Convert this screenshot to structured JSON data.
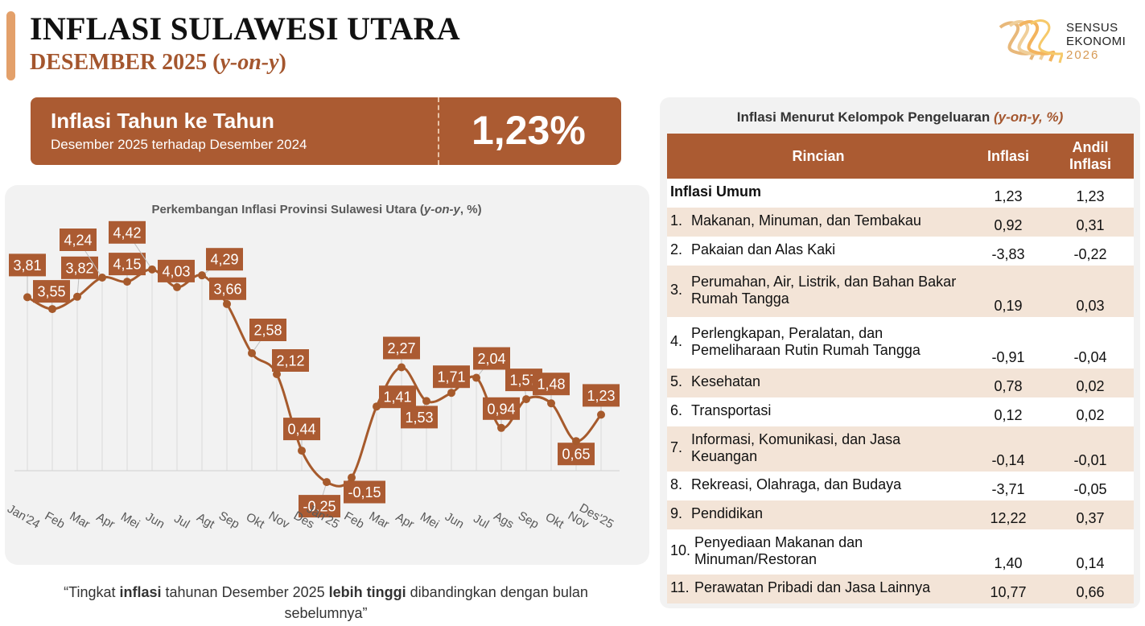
{
  "header": {
    "title": "INFLASI SULAWESI UTARA",
    "subtitle_main": "DESEMBER 2025 (",
    "subtitle_em": "y-on-y",
    "subtitle_end": ")"
  },
  "logo": {
    "line1": "SENSUS",
    "line2": "EKONOMI",
    "line3": "2026"
  },
  "kpi": {
    "label": "Inflasi Tahun ke Tahun",
    "description": "Desember 2025 terhadap Desember 2024",
    "value": "1,23%"
  },
  "chart_title": {
    "main": "Perkembangan Inflasi Provinsi Sulawesi Utara (",
    "em": "y-on-y",
    "end": ", %)"
  },
  "chart_data": {
    "type": "line",
    "title": "Perkembangan Inflasi Provinsi Sulawesi Utara (y-on-y, %)",
    "categories": [
      "Jan'24",
      "Feb",
      "Mar",
      "Apr",
      "Mei",
      "Jun",
      "Jul",
      "Agt",
      "Sep",
      "Okt",
      "Nov",
      "Des",
      "Jan'25",
      "Feb",
      "Mar",
      "Apr",
      "Mei",
      "Jun",
      "Jul",
      "Ags",
      "Sep",
      "Okt",
      "Nov",
      "Des'25"
    ],
    "values": [
      3.81,
      3.55,
      3.82,
      4.24,
      4.15,
      4.42,
      4.03,
      4.29,
      3.66,
      2.58,
      2.12,
      0.44,
      -0.25,
      -0.15,
      1.41,
      2.27,
      1.53,
      1.71,
      2.04,
      0.94,
      1.57,
      1.48,
      0.65,
      1.23
    ],
    "data_labels": [
      "3,81",
      "3,55",
      "3,82",
      "4,24",
      "4,15",
      "4,42",
      "4,03",
      "4,29",
      "3,66",
      "2,58",
      "2,12",
      "0,44",
      "-0,25",
      "-0,15",
      "1,41",
      "2,27",
      "1,53",
      "1,71",
      "2,04",
      "0,94",
      "1,57",
      "1,48",
      "0,65",
      "1,23"
    ],
    "series_color": "#a65a2c",
    "label_color": "#ab5b32",
    "grid": "vertical",
    "legend": "none"
  },
  "quote": {
    "p1": "“Tingkat ",
    "b1": "inflasi",
    "p2": " tahunan Desember 2025 ",
    "b2": "lebih tinggi",
    "p3": " dibandingkan dengan bulan sebelumnya”"
  },
  "table": {
    "title_main": "Inflasi Menurut Kelompok Pengeluaran ",
    "title_em": "(y-on-y, %)",
    "headers": {
      "rincian": "Rincian",
      "inflasi": "Inflasi",
      "andil_1": "Andil",
      "andil_2": "Inflasi"
    },
    "rows": [
      {
        "num": "",
        "label": "Inflasi Umum",
        "inflasi": "1,23",
        "andil": "1,23"
      },
      {
        "num": "1.",
        "label": "Makanan, Minuman, dan Tembakau",
        "inflasi": "0,92",
        "andil": "0,31"
      },
      {
        "num": "2.",
        "label": "Pakaian dan Alas Kaki",
        "inflasi": "-3,83",
        "andil": "-0,22"
      },
      {
        "num": "3.",
        "label": "Perumahan, Air, Listrik, dan Bahan Bakar Rumah Tangga",
        "inflasi": "0,19",
        "andil": "0,03"
      },
      {
        "num": "4.",
        "label": "Perlengkapan, Peralatan, dan Pemeliharaan Rutin Rumah Tangga",
        "inflasi": "-0,91",
        "andil": "-0,04"
      },
      {
        "num": "5.",
        "label": "Kesehatan",
        "inflasi": "0,78",
        "andil": "0,02"
      },
      {
        "num": "6.",
        "label": "Transportasi",
        "inflasi": "0,12",
        "andil": "0,02"
      },
      {
        "num": "7.",
        "label": "Informasi, Komunikasi, dan Jasa Keuangan",
        "inflasi": "-0,14",
        "andil": "-0,01"
      },
      {
        "num": "8.",
        "label": "Rekreasi, Olahraga, dan Budaya",
        "inflasi": "-3,71",
        "andil": "-0,05"
      },
      {
        "num": "9.",
        "label": "Pendidikan",
        "inflasi": "12,22",
        "andil": "0,37"
      },
      {
        "num": "10.",
        "label": "Penyediaan Makanan dan Minuman/Restoran",
        "inflasi": "1,40",
        "andil": "0,14"
      },
      {
        "num": "11.",
        "label": "Perawatan Pribadi dan Jasa Lainnya",
        "inflasi": "10,77",
        "andil": "0,66"
      }
    ]
  }
}
